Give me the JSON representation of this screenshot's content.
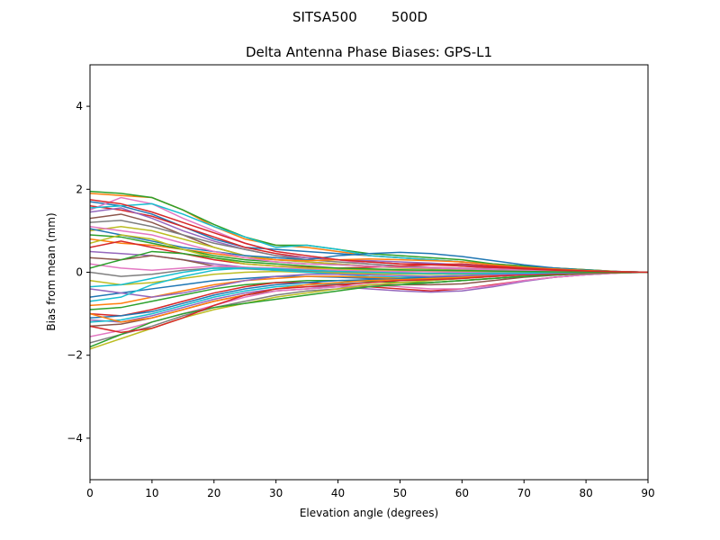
{
  "figure": {
    "suptitle": "SITSA500        500D"
  },
  "chart_data": {
    "type": "line",
    "title": "Delta Antenna Phase Biases: GPS-L1",
    "xlabel": "Elevation angle (degrees)",
    "ylabel": "Bias from mean (mm)",
    "xlim": [
      0,
      90
    ],
    "ylim": [
      -5,
      5
    ],
    "xticks": [
      0,
      10,
      20,
      30,
      40,
      50,
      60,
      70,
      80,
      90
    ],
    "yticks": [
      -4,
      -2,
      0,
      2,
      4
    ],
    "xtick_labels": [
      "0",
      "10",
      "20",
      "30",
      "40",
      "50",
      "60",
      "70",
      "80",
      "90"
    ],
    "ytick_labels": [
      "−4",
      "−2",
      "0",
      "2",
      "4"
    ],
    "grid": false,
    "legend": "none",
    "x": [
      0,
      5,
      10,
      15,
      20,
      25,
      30,
      35,
      40,
      45,
      50,
      55,
      60,
      65,
      70,
      75,
      80,
      85,
      90
    ],
    "series": [
      {
        "color": "#1f77b4",
        "values": [
          1.7,
          1.6,
          1.4,
          1.1,
          0.8,
          0.6,
          0.55,
          0.5,
          0.45,
          0.4,
          0.35,
          0.3,
          0.25,
          0.2,
          0.15,
          0.1,
          0.06,
          0.02,
          0.0
        ]
      },
      {
        "color": "#ff7f0e",
        "values": [
          1.9,
          1.85,
          1.8,
          1.5,
          1.1,
          0.8,
          0.65,
          0.6,
          0.5,
          0.4,
          0.35,
          0.3,
          0.25,
          0.2,
          0.15,
          0.1,
          0.06,
          0.02,
          0.0
        ]
      },
      {
        "color": "#2ca02c",
        "values": [
          1.95,
          1.9,
          1.8,
          1.5,
          1.15,
          0.85,
          0.65,
          0.65,
          0.55,
          0.45,
          0.4,
          0.35,
          0.3,
          0.2,
          0.15,
          0.1,
          0.06,
          0.02,
          0.0
        ]
      },
      {
        "color": "#d62728",
        "values": [
          1.6,
          1.5,
          1.35,
          1.1,
          0.85,
          0.6,
          0.45,
          0.35,
          0.3,
          0.25,
          0.2,
          0.2,
          0.15,
          0.1,
          0.08,
          0.05,
          0.03,
          0.01,
          0.0
        ]
      },
      {
        "color": "#9467bd",
        "values": [
          1.45,
          1.55,
          1.3,
          1.0,
          0.75,
          0.55,
          0.4,
          0.35,
          0.3,
          0.28,
          0.25,
          0.22,
          0.18,
          0.14,
          0.1,
          0.07,
          0.04,
          0.02,
          0.0
        ]
      },
      {
        "color": "#8c564b",
        "values": [
          1.3,
          1.4,
          1.2,
          0.9,
          0.6,
          0.4,
          0.3,
          0.25,
          0.2,
          0.15,
          0.12,
          0.1,
          0.08,
          0.06,
          0.05,
          0.04,
          0.02,
          0.01,
          0.0
        ]
      },
      {
        "color": "#e377c2",
        "values": [
          1.5,
          1.8,
          1.65,
          1.3,
          1.0,
          0.7,
          0.5,
          0.4,
          0.3,
          0.2,
          0.15,
          0.12,
          0.1,
          0.08,
          0.06,
          0.04,
          0.02,
          0.01,
          0.0
        ]
      },
      {
        "color": "#7f7f7f",
        "values": [
          1.2,
          1.25,
          1.1,
          0.9,
          0.7,
          0.55,
          0.4,
          0.3,
          0.25,
          0.2,
          0.15,
          0.1,
          0.08,
          0.06,
          0.04,
          0.03,
          0.02,
          0.01,
          0.0
        ]
      },
      {
        "color": "#bcbd22",
        "values": [
          1.0,
          1.1,
          1.0,
          0.8,
          0.6,
          0.4,
          0.3,
          0.25,
          0.2,
          0.15,
          0.1,
          0.08,
          0.06,
          0.05,
          0.04,
          0.03,
          0.02,
          0.01,
          0.0
        ]
      },
      {
        "color": "#17becf",
        "values": [
          1.55,
          1.6,
          1.65,
          1.4,
          1.1,
          0.85,
          0.6,
          0.65,
          0.55,
          0.4,
          0.35,
          0.3,
          0.25,
          0.18,
          0.12,
          0.08,
          0.05,
          0.02,
          0.0
        ]
      },
      {
        "color": "#1f77b4",
        "values": [
          1.05,
          0.9,
          0.75,
          0.6,
          0.5,
          0.4,
          0.35,
          0.3,
          0.4,
          0.45,
          0.48,
          0.45,
          0.38,
          0.28,
          0.18,
          0.1,
          0.05,
          0.02,
          0.0
        ]
      },
      {
        "color": "#ff7f0e",
        "values": [
          0.8,
          0.7,
          0.65,
          0.55,
          0.45,
          0.35,
          0.3,
          0.28,
          0.3,
          0.32,
          0.3,
          0.28,
          0.25,
          0.18,
          0.12,
          0.08,
          0.04,
          0.02,
          0.0
        ]
      },
      {
        "color": "#2ca02c",
        "values": [
          0.9,
          0.85,
          0.7,
          0.55,
          0.4,
          0.3,
          0.25,
          0.2,
          0.18,
          0.15,
          0.12,
          0.1,
          0.08,
          0.06,
          0.04,
          0.03,
          0.02,
          0.01,
          0.0
        ]
      },
      {
        "color": "#d62728",
        "values": [
          0.6,
          0.75,
          0.6,
          0.45,
          0.3,
          0.2,
          0.15,
          0.12,
          0.1,
          0.12,
          0.15,
          0.18,
          0.2,
          0.15,
          0.1,
          0.06,
          0.03,
          0.01,
          0.0
        ]
      },
      {
        "color": "#9467bd",
        "values": [
          0.5,
          0.45,
          0.4,
          0.3,
          0.2,
          0.12,
          0.08,
          0.05,
          0.04,
          0.03,
          0.02,
          0.02,
          0.01,
          0.01,
          0.0,
          0.0,
          0.0,
          0.0,
          0.0
        ]
      },
      {
        "color": "#8c564b",
        "values": [
          0.35,
          0.3,
          0.4,
          0.3,
          0.15,
          0.1,
          0.05,
          0.05,
          0.02,
          0.0,
          -0.02,
          -0.03,
          -0.03,
          -0.02,
          -0.02,
          -0.01,
          0.0,
          0.0,
          0.0
        ]
      },
      {
        "color": "#e377c2",
        "values": [
          0.2,
          0.1,
          0.05,
          0.1,
          0.15,
          0.12,
          0.1,
          0.08,
          0.05,
          0.03,
          0.02,
          0.01,
          0.0,
          0.0,
          0.0,
          0.0,
          0.0,
          0.0,
          0.0
        ]
      },
      {
        "color": "#7f7f7f",
        "values": [
          0.0,
          -0.1,
          -0.05,
          0.05,
          0.1,
          0.08,
          0.05,
          0.02,
          0.0,
          -0.02,
          -0.03,
          -0.04,
          -0.04,
          -0.03,
          -0.02,
          -0.01,
          0.0,
          0.0,
          0.0
        ]
      },
      {
        "color": "#bcbd22",
        "values": [
          -0.2,
          -0.3,
          -0.25,
          -0.15,
          -0.05,
          0.0,
          0.02,
          0.0,
          -0.02,
          -0.03,
          -0.04,
          -0.05,
          -0.04,
          -0.03,
          -0.02,
          -0.01,
          0.0,
          0.0,
          0.0
        ]
      },
      {
        "color": "#17becf",
        "values": [
          -0.35,
          -0.3,
          -0.15,
          0.0,
          0.1,
          0.1,
          0.05,
          0.0,
          -0.05,
          -0.1,
          -0.12,
          -0.1,
          -0.08,
          -0.05,
          -0.03,
          -0.02,
          -0.01,
          0.0,
          0.0
        ]
      },
      {
        "color": "#1f77b4",
        "values": [
          -0.6,
          -0.5,
          -0.4,
          -0.3,
          -0.2,
          -0.15,
          -0.1,
          -0.1,
          -0.12,
          -0.15,
          -0.15,
          -0.12,
          -0.1,
          -0.07,
          -0.05,
          -0.03,
          -0.02,
          -0.01,
          0.0
        ]
      },
      {
        "color": "#ff7f0e",
        "values": [
          -0.8,
          -0.75,
          -0.6,
          -0.45,
          -0.3,
          -0.2,
          -0.15,
          -0.1,
          -0.1,
          -0.12,
          -0.15,
          -0.18,
          -0.15,
          -0.1,
          -0.06,
          -0.04,
          -0.02,
          -0.01,
          0.0
        ]
      },
      {
        "color": "#2ca02c",
        "values": [
          -0.9,
          -0.85,
          -0.7,
          -0.55,
          -0.4,
          -0.3,
          -0.25,
          -0.2,
          -0.2,
          -0.22,
          -0.25,
          -0.25,
          -0.2,
          -0.15,
          -0.1,
          -0.06,
          -0.03,
          -0.01,
          0.0
        ]
      },
      {
        "color": "#d62728",
        "values": [
          -1.0,
          -1.05,
          -0.9,
          -0.7,
          -0.5,
          -0.35,
          -0.25,
          -0.25,
          -0.3,
          -0.35,
          -0.4,
          -0.45,
          -0.4,
          -0.3,
          -0.2,
          -0.12,
          -0.06,
          -0.02,
          0.0
        ]
      },
      {
        "color": "#9467bd",
        "values": [
          -1.15,
          -1.2,
          -1.05,
          -0.85,
          -0.65,
          -0.5,
          -0.4,
          -0.35,
          -0.35,
          -0.4,
          -0.45,
          -0.48,
          -0.45,
          -0.35,
          -0.22,
          -0.12,
          -0.06,
          -0.02,
          0.0
        ]
      },
      {
        "color": "#8c564b",
        "values": [
          -1.3,
          -1.25,
          -1.1,
          -0.9,
          -0.7,
          -0.55,
          -0.45,
          -0.4,
          -0.35,
          -0.3,
          -0.3,
          -0.3,
          -0.28,
          -0.2,
          -0.12,
          -0.07,
          -0.03,
          -0.01,
          0.0
        ]
      },
      {
        "color": "#e377c2",
        "values": [
          -1.55,
          -1.4,
          -1.2,
          -1.0,
          -0.8,
          -0.6,
          -0.45,
          -0.4,
          -0.35,
          -0.3,
          -0.35,
          -0.4,
          -0.4,
          -0.32,
          -0.2,
          -0.12,
          -0.06,
          -0.02,
          0.0
        ]
      },
      {
        "color": "#7f7f7f",
        "values": [
          -1.7,
          -1.5,
          -1.3,
          -1.05,
          -0.85,
          -0.7,
          -0.55,
          -0.45,
          -0.4,
          -0.35,
          -0.3,
          -0.25,
          -0.2,
          -0.15,
          -0.1,
          -0.06,
          -0.03,
          -0.01,
          0.0
        ]
      },
      {
        "color": "#bcbd22",
        "values": [
          -1.85,
          -1.6,
          -1.35,
          -1.1,
          -0.9,
          -0.75,
          -0.6,
          -0.5,
          -0.4,
          -0.3,
          -0.25,
          -0.2,
          -0.15,
          -0.1,
          -0.07,
          -0.04,
          -0.02,
          -0.01,
          0.0
        ]
      },
      {
        "color": "#17becf",
        "values": [
          -1.2,
          -1.15,
          -1.0,
          -0.8,
          -0.6,
          -0.45,
          -0.35,
          -0.3,
          -0.28,
          -0.25,
          -0.2,
          -0.18,
          -0.15,
          -0.1,
          -0.06,
          -0.04,
          -0.02,
          -0.01,
          0.0
        ]
      },
      {
        "color": "#1f77b4",
        "values": [
          -1.1,
          -1.05,
          -0.95,
          -0.75,
          -0.55,
          -0.4,
          -0.3,
          -0.25,
          -0.2,
          -0.18,
          -0.16,
          -0.14,
          -0.12,
          -0.08,
          -0.05,
          -0.03,
          -0.02,
          -0.01,
          0.0
        ]
      },
      {
        "color": "#ff7f0e",
        "values": [
          -1.0,
          -1.2,
          -1.1,
          -0.9,
          -0.7,
          -0.55,
          -0.4,
          -0.3,
          -0.25,
          -0.2,
          -0.18,
          -0.15,
          -0.12,
          -0.08,
          -0.05,
          -0.03,
          -0.02,
          -0.01,
          0.0
        ]
      },
      {
        "color": "#2ca02c",
        "values": [
          -1.8,
          -1.5,
          -1.2,
          -1.0,
          -0.85,
          -0.75,
          -0.65,
          -0.55,
          -0.45,
          -0.35,
          -0.3,
          -0.25,
          -0.2,
          -0.15,
          -0.1,
          -0.06,
          -0.03,
          -0.01,
          0.0
        ]
      },
      {
        "color": "#d62728",
        "values": [
          -1.3,
          -1.45,
          -1.35,
          -1.1,
          -0.8,
          -0.55,
          -0.4,
          -0.35,
          -0.3,
          -0.25,
          -0.2,
          -0.18,
          -0.15,
          -0.1,
          -0.06,
          -0.04,
          -0.02,
          -0.01,
          0.0
        ]
      },
      {
        "color": "#9467bd",
        "values": [
          -0.4,
          -0.5,
          -0.6,
          -0.5,
          -0.35,
          -0.2,
          -0.1,
          -0.05,
          -0.05,
          -0.06,
          -0.08,
          -0.1,
          -0.08,
          -0.06,
          -0.04,
          -0.02,
          -0.01,
          0.0,
          0.0
        ]
      },
      {
        "color": "#17becf",
        "values": [
          -0.7,
          -0.6,
          -0.3,
          -0.1,
          0.05,
          0.1,
          0.08,
          0.05,
          0.02,
          0.0,
          -0.02,
          -0.03,
          -0.03,
          -0.02,
          -0.02,
          -0.01,
          0.0,
          0.0,
          0.0
        ]
      },
      {
        "color": "#bcbd22",
        "values": [
          0.7,
          0.9,
          0.8,
          0.55,
          0.35,
          0.2,
          0.15,
          0.1,
          0.08,
          0.06,
          0.05,
          0.04,
          0.03,
          0.02,
          0.02,
          0.01,
          0.0,
          0.0,
          0.0
        ]
      },
      {
        "color": "#e377c2",
        "values": [
          1.1,
          1.0,
          0.9,
          0.7,
          0.5,
          0.35,
          0.25,
          0.2,
          0.18,
          0.15,
          0.12,
          0.1,
          0.08,
          0.06,
          0.04,
          0.03,
          0.02,
          0.01,
          0.0
        ]
      },
      {
        "color": "#2ca02c",
        "values": [
          0.1,
          0.3,
          0.5,
          0.45,
          0.35,
          0.25,
          0.2,
          0.15,
          0.1,
          0.08,
          0.06,
          0.05,
          0.04,
          0.03,
          0.02,
          0.01,
          0.0,
          0.0,
          0.0
        ]
      },
      {
        "color": "#d62728",
        "values": [
          1.75,
          1.65,
          1.45,
          1.2,
          0.95,
          0.7,
          0.5,
          0.4,
          0.3,
          0.25,
          0.2,
          0.18,
          0.15,
          0.12,
          0.08,
          0.05,
          0.03,
          0.01,
          0.0
        ]
      }
    ]
  }
}
